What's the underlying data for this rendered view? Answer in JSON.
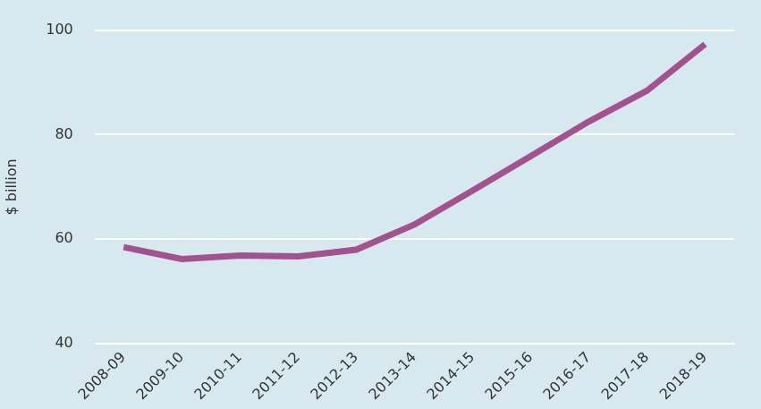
{
  "chart_data": {
    "type": "line",
    "y_label": "$ billion",
    "categories": [
      "2008-09",
      "2009-10",
      "2010-11",
      "2011-12",
      "2012-13",
      "2013-14",
      "2014-15",
      "2015-16",
      "2016-17",
      "2017-18",
      "2018-19"
    ],
    "values": [
      58.5,
      56.2,
      56.9,
      56.7,
      58.0,
      62.8,
      69.3,
      75.9,
      82.5,
      88.4,
      97.3
    ],
    "color": "#a2538f",
    "ylim": [
      40,
      100
    ],
    "yticks": [
      40,
      60,
      80,
      100
    ],
    "grid": true
  }
}
